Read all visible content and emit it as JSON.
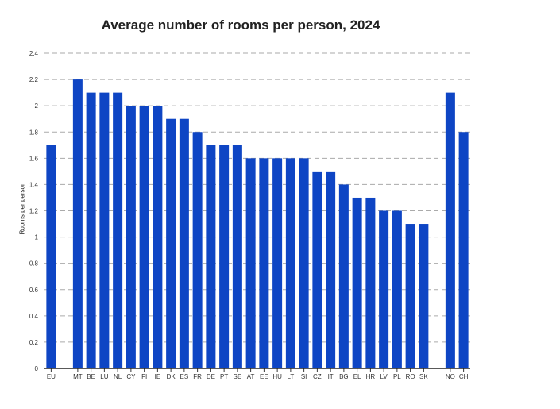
{
  "chart_data": {
    "type": "bar",
    "title": "Average number of rooms per person, 2024",
    "xlabel": "",
    "ylabel": "Rooms per person",
    "ylim": [
      0,
      2.4
    ],
    "yticks": [
      "0",
      "0.2",
      "0.4",
      "0.6",
      "0.8",
      "1",
      "1.2",
      "1.4",
      "1.6",
      "1.8",
      "2",
      "2.2",
      "2.4"
    ],
    "grid": true,
    "legend": "none",
    "bar_color": "#0e45c4",
    "categories": [
      "EU",
      "MT",
      "BE",
      "LU",
      "NL",
      "CY",
      "FI",
      "IE",
      "DK",
      "ES",
      "FR",
      "DE",
      "PT",
      "SE",
      "AT",
      "EE",
      "HU",
      "LT",
      "SI",
      "CZ",
      "IT",
      "BG",
      "EL",
      "HR",
      "LV",
      "PL",
      "RO",
      "SK",
      "NO",
      "CH"
    ],
    "values": [
      1.7,
      2.2,
      2.1,
      2.1,
      2.1,
      2.0,
      2.0,
      2.0,
      1.9,
      1.9,
      1.8,
      1.7,
      1.7,
      1.7,
      1.6,
      1.6,
      1.6,
      1.6,
      1.6,
      1.5,
      1.5,
      1.4,
      1.3,
      1.3,
      1.2,
      1.2,
      1.1,
      1.1,
      2.1,
      1.8
    ]
  }
}
